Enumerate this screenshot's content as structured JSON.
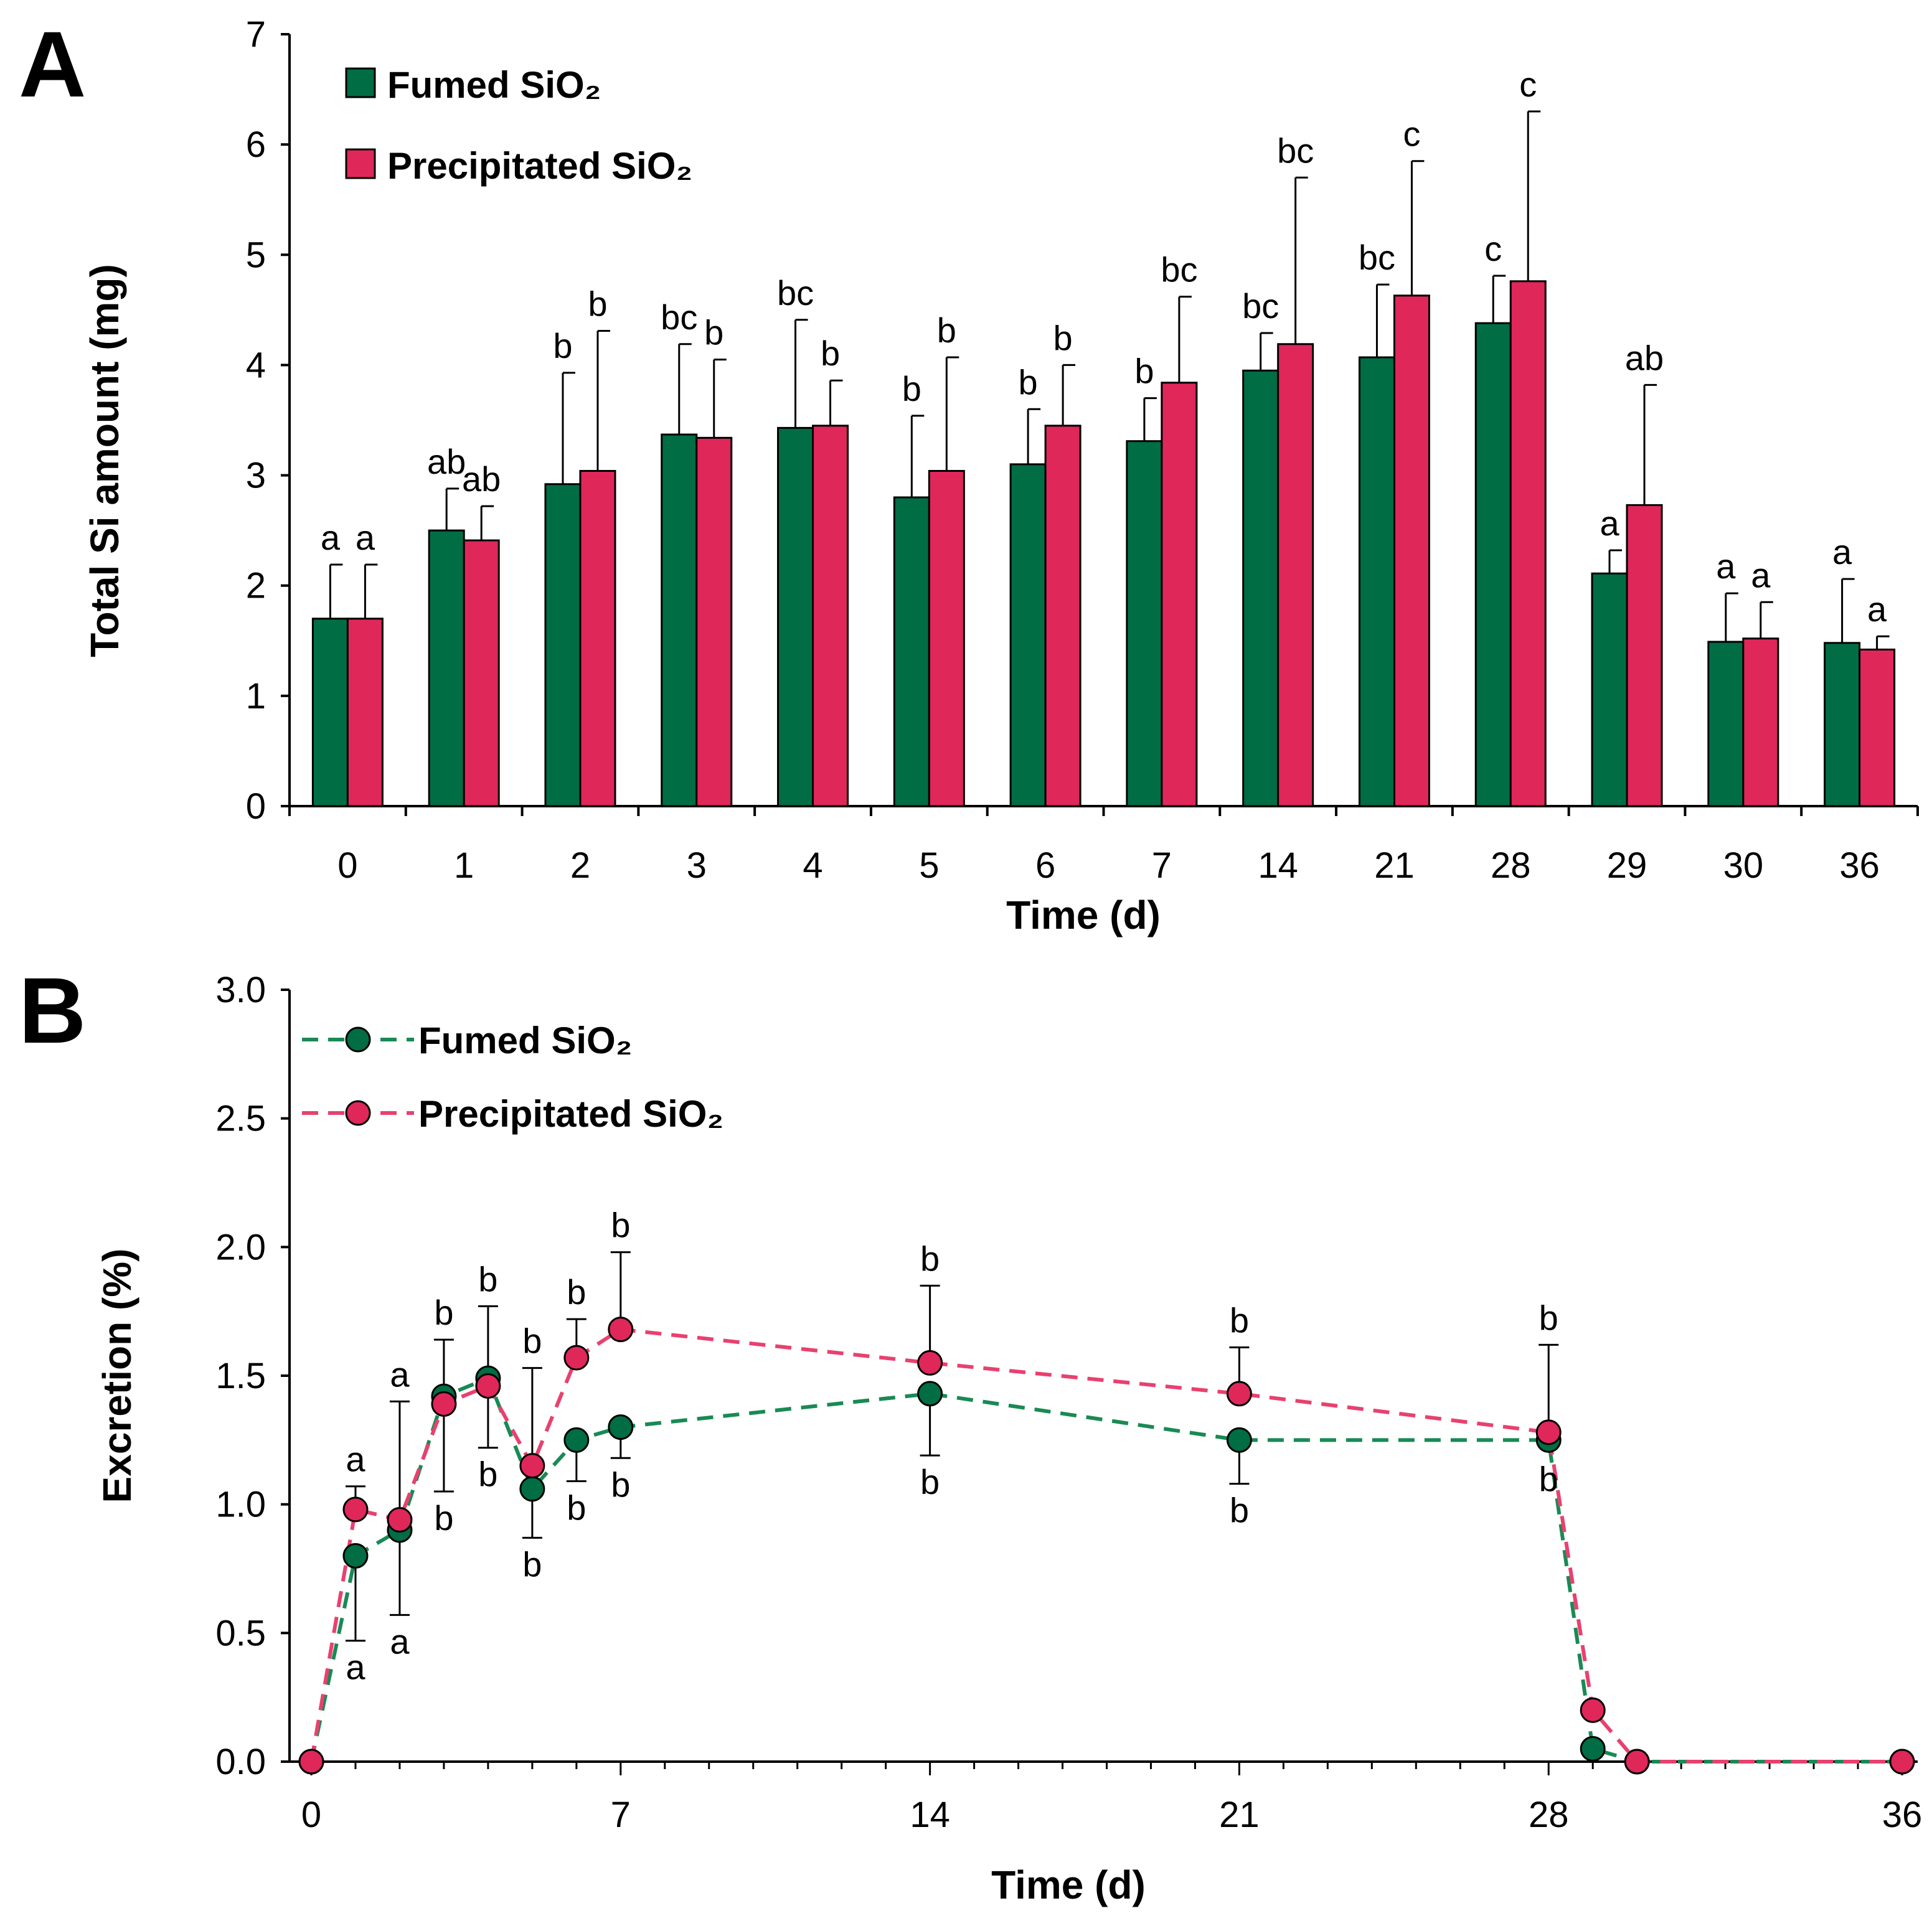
{
  "chart_data": [
    {
      "panel": "A",
      "type": "bar",
      "ylabel": "Total Si amount (mg)",
      "xlabel": "Time (d)",
      "ylim": [
        0,
        7
      ],
      "yticks": [
        "0",
        "1",
        "2",
        "3",
        "4",
        "5",
        "6",
        "7"
      ],
      "categories": [
        "0",
        "1",
        "2",
        "3",
        "4",
        "5",
        "6",
        "7",
        "14",
        "21",
        "28",
        "29",
        "30",
        "36"
      ],
      "grid": false,
      "legend_position": "top-left",
      "series": [
        {
          "name": "Fumed SiO₂",
          "color": "#006d45",
          "values": [
            1.7,
            2.5,
            2.92,
            3.37,
            3.43,
            2.8,
            3.1,
            3.31,
            3.95,
            4.07,
            4.38,
            2.11,
            1.49,
            1.48
          ],
          "errors": [
            0.49,
            0.38,
            1.01,
            0.82,
            0.98,
            0.74,
            0.5,
            0.39,
            0.34,
            0.66,
            0.43,
            0.21,
            0.44,
            0.58
          ],
          "letters": [
            "a",
            "ab",
            "b",
            "bc",
            "bc",
            "b",
            "b",
            "b",
            "bc",
            "bc",
            "c",
            "a",
            "a",
            "a"
          ]
        },
        {
          "name": "Precipitated SiO₂",
          "color": "#e0275a",
          "values": [
            1.7,
            2.41,
            3.04,
            3.34,
            3.45,
            3.04,
            3.45,
            3.84,
            4.19,
            4.63,
            4.76,
            2.73,
            1.52,
            1.42
          ],
          "errors": [
            0.49,
            0.31,
            1.27,
            0.71,
            0.41,
            1.03,
            0.55,
            0.78,
            1.51,
            1.22,
            1.54,
            1.09,
            0.33,
            0.12
          ],
          "letters": [
            "a",
            "ab",
            "b",
            "b",
            "b",
            "b",
            "b",
            "bc",
            "bc",
            "c",
            "c",
            "ab",
            "a",
            "a"
          ]
        }
      ]
    },
    {
      "panel": "B",
      "type": "line",
      "ylabel": "Excretion (%)",
      "xlabel": "Time (d)",
      "xlim": [
        0,
        36
      ],
      "ylim": [
        0,
        3
      ],
      "xticks": [
        "0",
        "7",
        "14",
        "21",
        "28",
        "36"
      ],
      "yticks": [
        "0.0",
        "0.5",
        "1.0",
        "1.5",
        "2.0",
        "2.5",
        "3.0"
      ],
      "grid": false,
      "legend_position": "top-left",
      "x": [
        0,
        1,
        2,
        3,
        4,
        5,
        6,
        7,
        14,
        21,
        28,
        29,
        30,
        36
      ],
      "series": [
        {
          "name": "Fumed SiO₂",
          "color": "#006d45",
          "line_color": "#198a55",
          "values": [
            0.0,
            0.8,
            0.9,
            1.42,
            1.49,
            1.06,
            1.25,
            1.3,
            1.43,
            1.25,
            1.25,
            0.05,
            0.0,
            0.0
          ],
          "err_low": [
            0,
            0.33,
            0.33,
            0.37,
            0.27,
            0.19,
            0.16,
            0.12,
            0.24,
            0.17,
            0,
            0,
            0,
            0
          ],
          "letters": [
            null,
            "a",
            "a",
            "b",
            "b",
            "b",
            "b",
            "b",
            "b",
            "b",
            "b",
            null,
            null,
            null
          ]
        },
        {
          "name": "Precipitated SiO₂",
          "color": "#e0275a",
          "line_color": "#e8416f",
          "values": [
            0.0,
            0.98,
            0.94,
            1.39,
            1.46,
            1.15,
            1.57,
            1.68,
            1.55,
            1.43,
            1.28,
            0.2,
            0.0,
            0.0
          ],
          "err_high": [
            0,
            0.09,
            0.46,
            0.25,
            0.31,
            0.38,
            0.15,
            0.3,
            0.3,
            0.18,
            0.34,
            0,
            0,
            0
          ],
          "letters": [
            null,
            "a",
            "a",
            "b",
            "b",
            "b",
            "b",
            "b",
            "b",
            "b",
            "b",
            null,
            null,
            null
          ]
        }
      ]
    }
  ]
}
